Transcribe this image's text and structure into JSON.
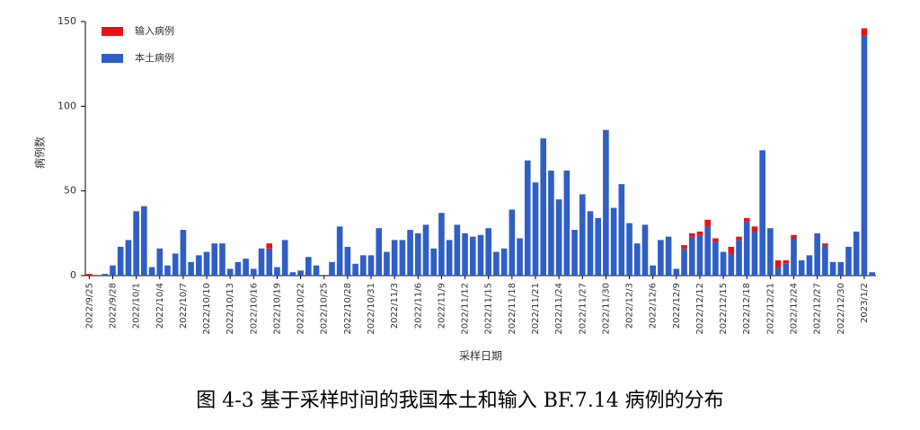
{
  "chart_data": {
    "type": "bar",
    "stacked": true,
    "x_label": "采样日期",
    "y_label": "病例数",
    "caption": "图 4-3 基于采样时间的我国本土和输入 BF.7.14 病例的分布",
    "categories": [
      "2022/9/25",
      null,
      null,
      "2022/9/28",
      null,
      null,
      "2022/10/1",
      null,
      null,
      "2022/10/4",
      null,
      null,
      "2022/10/7",
      null,
      null,
      "2022/10/10",
      null,
      null,
      "2022/10/13",
      null,
      null,
      "2022/10/16",
      null,
      null,
      "2022/10/19",
      null,
      null,
      "2022/10/22",
      null,
      null,
      "2022/10/25",
      null,
      null,
      "2022/10/28",
      null,
      null,
      "2022/10/31",
      null,
      null,
      "2022/11/3",
      null,
      null,
      "2022/11/6",
      null,
      null,
      "2022/11/9",
      null,
      null,
      "2022/11/12",
      null,
      null,
      "2022/11/15",
      null,
      null,
      "2022/11/18",
      null,
      null,
      "2022/11/21",
      null,
      null,
      "2022/11/24",
      null,
      null,
      "2022/11/27",
      null,
      null,
      "2022/11/30",
      null,
      null,
      "2022/12/3",
      null,
      null,
      "2022/12/6",
      null,
      null,
      "2022/12/9",
      null,
      null,
      "2022/12/12",
      null,
      null,
      "2022/12/15",
      null,
      null,
      "2022/12/18",
      null,
      null,
      "2022/12/21",
      null,
      null,
      "2022/12/24",
      null,
      null,
      "2022/12/27",
      null,
      null,
      "2022/12/30",
      null,
      null,
      "2023/1/2",
      null
    ],
    "series": [
      {
        "name": "输入病例",
        "color": "#ee1111",
        "values": [
          1,
          0,
          0,
          0,
          0,
          0,
          0,
          0,
          0,
          0,
          0,
          0,
          0,
          0,
          0,
          0,
          0,
          0,
          0,
          0,
          0,
          0,
          0,
          3,
          0,
          0,
          0,
          0,
          0,
          0,
          0,
          0,
          0,
          0,
          0,
          0,
          0,
          0,
          0,
          0,
          0,
          0,
          0,
          0,
          0,
          0,
          0,
          0,
          0,
          0,
          0,
          0,
          0,
          0,
          0,
          0,
          0,
          0,
          0,
          0,
          0,
          0,
          0,
          0,
          0,
          0,
          0,
          0,
          0,
          0,
          0,
          0,
          0,
          0,
          0,
          0,
          2,
          2,
          2,
          4,
          2,
          0,
          4,
          2,
          2,
          3,
          0,
          0,
          4,
          2,
          2,
          0,
          0,
          0,
          1,
          0,
          0,
          0,
          0,
          4,
          0
        ]
      },
      {
        "name": "本土病例",
        "color": "#2f5fc4",
        "values": [
          0,
          0,
          1,
          6,
          17,
          21,
          38,
          41,
          5,
          16,
          6,
          13,
          27,
          8,
          12,
          14,
          19,
          19,
          4,
          8,
          10,
          4,
          16,
          16,
          5,
          21,
          2,
          3,
          11,
          6,
          0,
          8,
          29,
          17,
          7,
          12,
          12,
          28,
          14,
          21,
          21,
          27,
          25,
          30,
          16,
          37,
          21,
          30,
          25,
          23,
          24,
          28,
          14,
          16,
          39,
          22,
          68,
          55,
          81,
          62,
          45,
          62,
          27,
          48,
          38,
          34,
          86,
          40,
          54,
          31,
          19,
          30,
          6,
          21,
          23,
          4,
          16,
          23,
          24,
          29,
          20,
          14,
          13,
          21,
          32,
          26,
          74,
          28,
          5,
          7,
          22,
          9,
          12,
          25,
          18,
          8,
          8,
          17,
          26,
          142,
          2
        ]
      }
    ],
    "ylim": [
      0,
      150
    ],
    "yticks": [
      0,
      50,
      100,
      150
    ],
    "grid": false,
    "legend": "top-left"
  }
}
